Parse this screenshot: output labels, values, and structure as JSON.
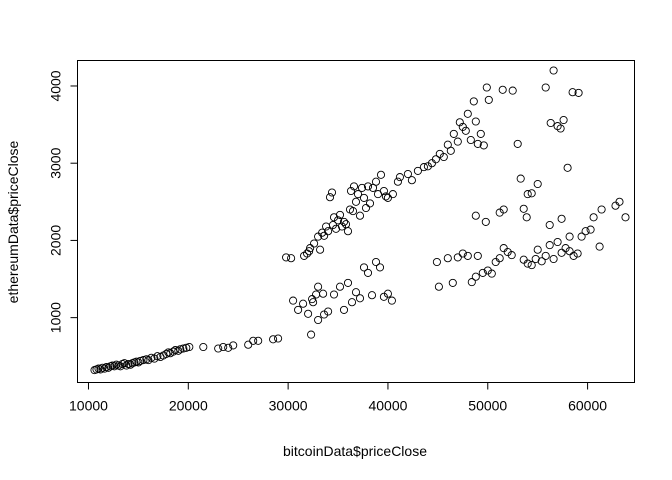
{
  "chart_data": {
    "type": "scatter",
    "title": "",
    "xlabel": "bitcoinData$priceClose",
    "ylabel": "ethereumData$priceClose",
    "xlim": [
      8900,
      64700
    ],
    "ylim": [
      160,
      4330
    ],
    "grid": false,
    "legend": "none",
    "x_ticks": [
      10000,
      20000,
      30000,
      40000,
      50000,
      60000
    ],
    "y_ticks": [
      1000,
      2000,
      3000,
      4000
    ],
    "x_tick_labels": [
      "10000",
      "20000",
      "30000",
      "40000",
      "50000",
      "60000"
    ],
    "y_tick_labels": [
      "1000",
      "2000",
      "3000",
      "4000"
    ],
    "points": [
      [
        10600,
        320
      ],
      [
        10800,
        330
      ],
      [
        11000,
        340
      ],
      [
        11200,
        330
      ],
      [
        11400,
        350
      ],
      [
        11600,
        340
      ],
      [
        11800,
        360
      ],
      [
        12000,
        350
      ],
      [
        12200,
        370
      ],
      [
        12400,
        380
      ],
      [
        12600,
        370
      ],
      [
        12800,
        390
      ],
      [
        13000,
        380
      ],
      [
        13200,
        370
      ],
      [
        13400,
        400
      ],
      [
        13600,
        410
      ],
      [
        13800,
        380
      ],
      [
        14000,
        400
      ],
      [
        14200,
        390
      ],
      [
        14400,
        410
      ],
      [
        14600,
        420
      ],
      [
        14800,
        430
      ],
      [
        15000,
        420
      ],
      [
        15200,
        440
      ],
      [
        15500,
        450
      ],
      [
        15800,
        460
      ],
      [
        16000,
        450
      ],
      [
        16300,
        480
      ],
      [
        16600,
        470
      ],
      [
        16900,
        500
      ],
      [
        17200,
        490
      ],
      [
        17500,
        510
      ],
      [
        17800,
        530
      ],
      [
        18000,
        550
      ],
      [
        18200,
        540
      ],
      [
        18500,
        560
      ],
      [
        18700,
        580
      ],
      [
        19000,
        570
      ],
      [
        19200,
        590
      ],
      [
        19500,
        600
      ],
      [
        19800,
        610
      ],
      [
        20100,
        620
      ],
      [
        21500,
        620
      ],
      [
        23000,
        600
      ],
      [
        23500,
        620
      ],
      [
        24000,
        610
      ],
      [
        24500,
        640
      ],
      [
        26000,
        650
      ],
      [
        26500,
        700
      ],
      [
        27000,
        700
      ],
      [
        28500,
        720
      ],
      [
        29000,
        730
      ],
      [
        29800,
        1780
      ],
      [
        30300,
        1770
      ],
      [
        30500,
        1220
      ],
      [
        31000,
        1100
      ],
      [
        31500,
        1180
      ],
      [
        31600,
        1800
      ],
      [
        31900,
        1830
      ],
      [
        32000,
        1050
      ],
      [
        32100,
        1860
      ],
      [
        32200,
        1900
      ],
      [
        32300,
        780
      ],
      [
        32400,
        1240
      ],
      [
        32500,
        1200
      ],
      [
        32600,
        1960
      ],
      [
        32800,
        1300
      ],
      [
        33000,
        2050
      ],
      [
        33000,
        1400
      ],
      [
        33200,
        1880
      ],
      [
        33400,
        2100
      ],
      [
        33500,
        1310
      ],
      [
        33600,
        2060
      ],
      [
        33800,
        2180
      ],
      [
        34000,
        2120
      ],
      [
        34200,
        2560
      ],
      [
        34400,
        2620
      ],
      [
        34500,
        2200
      ],
      [
        34600,
        2300
      ],
      [
        34800,
        2150
      ],
      [
        35000,
        2260
      ],
      [
        35200,
        2330
      ],
      [
        35400,
        2180
      ],
      [
        35600,
        2240
      ],
      [
        35800,
        2210
      ],
      [
        36000,
        2120
      ],
      [
        36200,
        2400
      ],
      [
        36300,
        2640
      ],
      [
        36500,
        2380
      ],
      [
        36600,
        2700
      ],
      [
        36800,
        2500
      ],
      [
        37000,
        2600
      ],
      [
        37200,
        2320
      ],
      [
        37400,
        2680
      ],
      [
        37600,
        2550
      ],
      [
        37800,
        2420
      ],
      [
        38000,
        2700
      ],
      [
        38200,
        2480
      ],
      [
        38500,
        2680
      ],
      [
        38800,
        2760
      ],
      [
        39000,
        2600
      ],
      [
        39300,
        2850
      ],
      [
        39600,
        2640
      ],
      [
        39800,
        2570
      ],
      [
        40000,
        2550
      ],
      [
        40500,
        2600
      ],
      [
        41000,
        2760
      ],
      [
        41200,
        2820
      ],
      [
        42000,
        2860
      ],
      [
        42400,
        2780
      ],
      [
        43000,
        2900
      ],
      [
        43600,
        2950
      ],
      [
        44000,
        2960
      ],
      [
        44400,
        3000
      ],
      [
        44800,
        3050
      ],
      [
        45200,
        3120
      ],
      [
        45600,
        3080
      ],
      [
        46000,
        3240
      ],
      [
        46300,
        3160
      ],
      [
        46600,
        3380
      ],
      [
        47000,
        3280
      ],
      [
        47200,
        3530
      ],
      [
        47500,
        3470
      ],
      [
        47800,
        3420
      ],
      [
        48000,
        3640
      ],
      [
        48300,
        3300
      ],
      [
        48600,
        3800
      ],
      [
        48800,
        3540
      ],
      [
        49000,
        3250
      ],
      [
        49300,
        3380
      ],
      [
        49600,
        3230
      ],
      [
        49900,
        3980
      ],
      [
        50100,
        3820
      ],
      [
        51500,
        3950
      ],
      [
        52500,
        3940
      ],
      [
        53000,
        3250
      ],
      [
        53300,
        2800
      ],
      [
        53600,
        2410
      ],
      [
        54000,
        2600
      ],
      [
        54400,
        2610
      ],
      [
        55000,
        2730
      ],
      [
        55800,
        3980
      ],
      [
        56300,
        3520
      ],
      [
        56600,
        4200
      ],
      [
        57000,
        3480
      ],
      [
        57300,
        3450
      ],
      [
        57600,
        3560
      ],
      [
        58000,
        2940
      ],
      [
        58500,
        3920
      ],
      [
        59100,
        3910
      ],
      [
        33000,
        970
      ],
      [
        33600,
        1040
      ],
      [
        34000,
        1080
      ],
      [
        34600,
        1300
      ],
      [
        35200,
        1400
      ],
      [
        35600,
        1100
      ],
      [
        36000,
        1450
      ],
      [
        36400,
        1200
      ],
      [
        36800,
        1330
      ],
      [
        37200,
        1250
      ],
      [
        37600,
        1650
      ],
      [
        38000,
        1580
      ],
      [
        38400,
        1290
      ],
      [
        38800,
        1720
      ],
      [
        39200,
        1650
      ],
      [
        39600,
        1270
      ],
      [
        40000,
        1310
      ],
      [
        40400,
        1220
      ],
      [
        44900,
        1720
      ],
      [
        45100,
        1400
      ],
      [
        46000,
        1770
      ],
      [
        46500,
        1450
      ],
      [
        47000,
        1780
      ],
      [
        47500,
        1830
      ],
      [
        48000,
        1800
      ],
      [
        48400,
        1460
      ],
      [
        48800,
        1530
      ],
      [
        49000,
        1800
      ],
      [
        49500,
        1580
      ],
      [
        50000,
        1610
      ],
      [
        50400,
        1570
      ],
      [
        50800,
        1720
      ],
      [
        51200,
        1770
      ],
      [
        51600,
        1900
      ],
      [
        52000,
        1850
      ],
      [
        52400,
        1810
      ],
      [
        53600,
        1750
      ],
      [
        54000,
        1700
      ],
      [
        54400,
        1680
      ],
      [
        54800,
        1760
      ],
      [
        55000,
        1880
      ],
      [
        55400,
        1730
      ],
      [
        55800,
        1800
      ],
      [
        56200,
        1940
      ],
      [
        56600,
        1760
      ],
      [
        57000,
        1980
      ],
      [
        57400,
        1840
      ],
      [
        57800,
        1900
      ],
      [
        58200,
        1860
      ],
      [
        58600,
        1800
      ],
      [
        59000,
        1830
      ],
      [
        59400,
        2050
      ],
      [
        59800,
        2120
      ],
      [
        60300,
        2140
      ],
      [
        61200,
        1920
      ],
      [
        62800,
        2450
      ],
      [
        63200,
        2500
      ],
      [
        63800,
        2300
      ],
      [
        48800,
        2320
      ],
      [
        49800,
        2240
      ],
      [
        51200,
        2360
      ],
      [
        51600,
        2400
      ],
      [
        53900,
        2300
      ],
      [
        56200,
        2200
      ],
      [
        57400,
        2280
      ],
      [
        58200,
        2050
      ],
      [
        60600,
        2300
      ],
      [
        61400,
        2400
      ]
    ]
  }
}
